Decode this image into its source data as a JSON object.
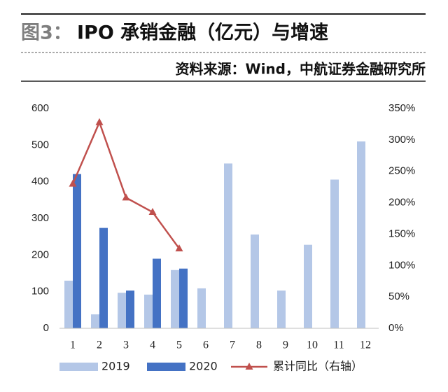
{
  "chart_data": {
    "type": "bar",
    "figure_label": "图3：",
    "title": "IPO 承销金融（亿元）与增速",
    "subtitle": "资料来源：Wind，中航证券金融研究所",
    "categories": [
      "1",
      "2",
      "3",
      "4",
      "5",
      "6",
      "7",
      "8",
      "9",
      "10",
      "11",
      "12"
    ],
    "series": [
      {
        "name": "2019",
        "color": "#b4c7e7",
        "values": [
          130,
          38,
          97,
          92,
          159,
          109,
          450,
          256,
          103,
          228,
          406,
          510
        ]
      },
      {
        "name": "2020",
        "color": "#4472c4",
        "values": [
          421,
          274,
          103,
          190,
          163,
          null,
          null,
          null,
          null,
          null,
          null,
          null
        ]
      },
      {
        "name": "累计同比（右轴）",
        "color": "#c0504d",
        "type": "line",
        "axis": "y2",
        "values": [
          230,
          328,
          208,
          185,
          127,
          null,
          null,
          null,
          null,
          null,
          null,
          null
        ]
      }
    ],
    "ylim": [
      0,
      600
    ],
    "yticks": [
      0,
      100,
      200,
      300,
      400,
      500,
      600
    ],
    "y2lim": [
      0,
      350
    ],
    "y2ticks": [
      {
        "value": 0,
        "label": "0%"
      },
      {
        "value": 50,
        "label": "50%"
      },
      {
        "value": 100,
        "label": "100%"
      },
      {
        "value": 150,
        "label": "150%"
      },
      {
        "value": 200,
        "label": "200%"
      },
      {
        "value": 250,
        "label": "250%"
      },
      {
        "value": 300,
        "label": "300%"
      },
      {
        "value": 350,
        "label": "350%"
      }
    ]
  }
}
